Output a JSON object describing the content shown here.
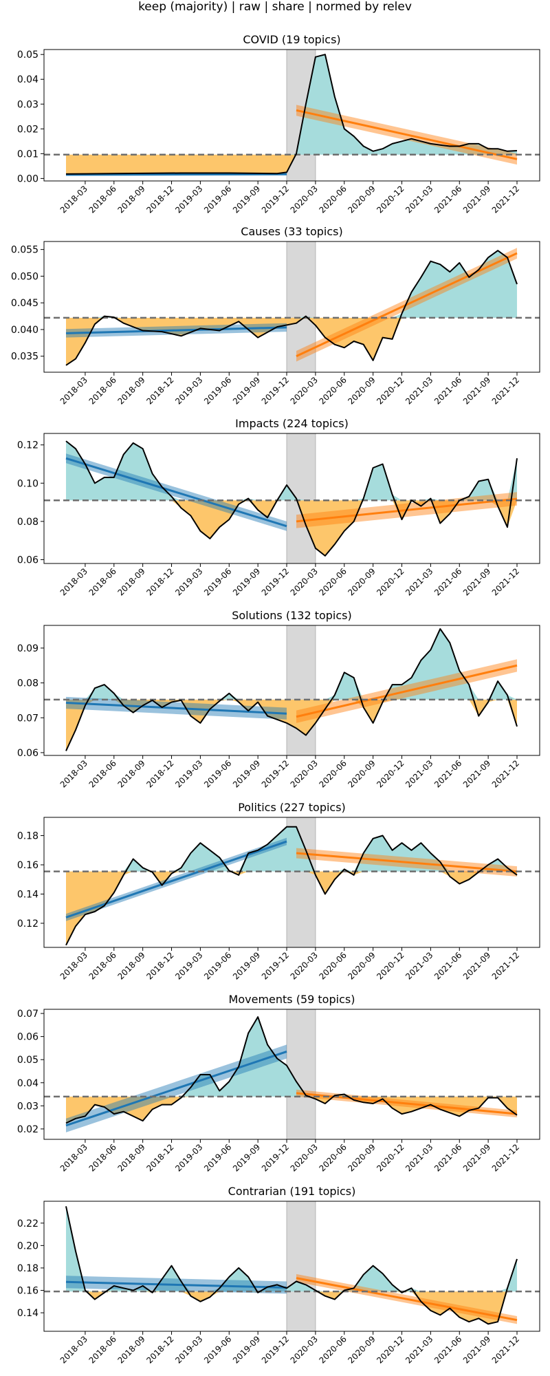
{
  "figure": {
    "title": "keep (majority) | raw | share | normed by relev"
  },
  "colors": {
    "line": "#000000",
    "above_fill": "#a6dcdc",
    "below_fill": "#fdc66b",
    "pre_trend": "#1f77b4",
    "post_trend": "#ff7f0e",
    "covid_band": "#d8d8d8",
    "mean_line": "#6e6e6e"
  },
  "x_ticks": [
    "2018-03",
    "2018-06",
    "2018-09",
    "2018-12",
    "2019-03",
    "2019-06",
    "2019-09",
    "2019-12",
    "2020-03",
    "2020-06",
    "2020-09",
    "2020-12",
    "2021-03",
    "2021-06",
    "2021-09",
    "2021-12"
  ],
  "chart_data": [
    {
      "type": "line",
      "title": "COVID (19 topics)",
      "ylim": [
        -0.001,
        0.052
      ],
      "yticks": [
        "0.00",
        "0.01",
        "0.02",
        "0.03",
        "0.04",
        "0.05"
      ],
      "ytick_values": [
        0,
        0.01,
        0.02,
        0.03,
        0.04,
        0.05
      ],
      "mean": 0.0096,
      "covid_band": [
        "2019-12",
        "2020-03"
      ],
      "pre_trend": {
        "x": [
          "2018-01",
          "2019-12"
        ],
        "y": [
          0.0015,
          0.0017
        ],
        "band": 0.0004
      },
      "post_trend": {
        "x": [
          "2020-01",
          "2021-12"
        ],
        "y": [
          0.0275,
          0.0078
        ],
        "band": 0.0022
      },
      "series": [
        {
          "x": [
            "2018-01",
            "2018-06",
            "2019-01",
            "2019-06",
            "2019-11",
            "2019-12",
            "2020-01",
            "2020-02",
            "2020-03",
            "2020-04",
            "2020-05",
            "2020-06",
            "2020-07",
            "2020-08",
            "2020-09",
            "2020-10",
            "2020-11",
            "2020-12",
            "2021-01",
            "2021-02",
            "2021-03",
            "2021-04",
            "2021-05",
            "2021-06",
            "2021-07",
            "2021-08",
            "2021-09",
            "2021-10",
            "2021-11",
            "2021-12"
          ],
          "y": [
            0.0018,
            0.002,
            0.0022,
            0.0022,
            0.002,
            0.0025,
            0.01,
            0.03,
            0.049,
            0.05,
            0.033,
            0.02,
            0.017,
            0.013,
            0.011,
            0.012,
            0.014,
            0.015,
            0.016,
            0.015,
            0.014,
            0.0135,
            0.013,
            0.013,
            0.014,
            0.014,
            0.012,
            0.012,
            0.011,
            0.0112
          ]
        }
      ]
    },
    {
      "type": "line",
      "title": "Causes (33 topics)",
      "ylim": [
        0.032,
        0.0565
      ],
      "yticks": [
        "0.035",
        "0.040",
        "0.045",
        "0.050",
        "0.055"
      ],
      "ytick_values": [
        0.035,
        0.04,
        0.045,
        0.05,
        0.055
      ],
      "mean": 0.0422,
      "covid_band": [
        "2019-12",
        "2020-03"
      ],
      "pre_trend": {
        "x": [
          "2018-01",
          "2019-12"
        ],
        "y": [
          0.0393,
          0.0404
        ],
        "band": 0.0008
      },
      "post_trend": {
        "x": [
          "2020-01",
          "2021-12"
        ],
        "y": [
          0.035,
          0.0543
        ],
        "band": 0.001
      },
      "series": [
        {
          "x": [
            "2018-01",
            "2018-02",
            "2018-03",
            "2018-04",
            "2018-05",
            "2018-06",
            "2018-07",
            "2018-09",
            "2018-11",
            "2019-01",
            "2019-03",
            "2019-05",
            "2019-07",
            "2019-09",
            "2019-11",
            "2020-01",
            "2020-02",
            "2020-03",
            "2020-04",
            "2020-05",
            "2020-06",
            "2020-07",
            "2020-08",
            "2020-09",
            "2020-10",
            "2020-11",
            "2020-12",
            "2021-01",
            "2021-02",
            "2021-03",
            "2021-04",
            "2021-05",
            "2021-06",
            "2021-07",
            "2021-08",
            "2021-09",
            "2021-10",
            "2021-11",
            "2021-12"
          ],
          "y": [
            0.0333,
            0.0345,
            0.0375,
            0.041,
            0.0425,
            0.0423,
            0.0412,
            0.0398,
            0.0396,
            0.0388,
            0.0402,
            0.0398,
            0.0415,
            0.0385,
            0.0405,
            0.0412,
            0.0425,
            0.0408,
            0.0385,
            0.0372,
            0.0366,
            0.0378,
            0.0372,
            0.0342,
            0.0385,
            0.0382,
            0.043,
            0.047,
            0.0498,
            0.0528,
            0.0522,
            0.0508,
            0.0525,
            0.0498,
            0.0512,
            0.0535,
            0.0548,
            0.0535,
            0.0485
          ]
        }
      ]
    },
    {
      "type": "line",
      "title": "Impacts (224 topics)",
      "ylim": [
        0.058,
        0.126
      ],
      "yticks": [
        "0.06",
        "0.08",
        "0.10",
        "0.12"
      ],
      "ytick_values": [
        0.06,
        0.08,
        0.1,
        0.12
      ],
      "mean": 0.091,
      "covid_band": [
        "2019-12",
        "2020-03"
      ],
      "pre_trend": {
        "x": [
          "2018-01",
          "2019-12"
        ],
        "y": [
          0.113,
          0.0775
        ],
        "band": 0.0025
      },
      "post_trend": {
        "x": [
          "2020-01",
          "2021-12"
        ],
        "y": [
          0.08,
          0.0918
        ],
        "band": 0.0035
      },
      "series": [
        {
          "x": [
            "2018-01",
            "2018-02",
            "2018-03",
            "2018-04",
            "2018-05",
            "2018-06",
            "2018-07",
            "2018-08",
            "2018-09",
            "2018-10",
            "2018-11",
            "2018-12",
            "2019-01",
            "2019-02",
            "2019-03",
            "2019-04",
            "2019-05",
            "2019-06",
            "2019-07",
            "2019-08",
            "2019-09",
            "2019-10",
            "2019-11",
            "2019-12",
            "2020-01",
            "2020-02",
            "2020-03",
            "2020-04",
            "2020-05",
            "2020-06",
            "2020-07",
            "2020-08",
            "2020-09",
            "2020-10",
            "2020-11",
            "2020-12",
            "2021-01",
            "2021-02",
            "2021-03",
            "2021-04",
            "2021-05",
            "2021-06",
            "2021-07",
            "2021-08",
            "2021-09",
            "2021-10",
            "2021-11",
            "2021-12"
          ],
          "y": [
            0.122,
            0.118,
            0.11,
            0.1,
            0.103,
            0.103,
            0.115,
            0.121,
            0.118,
            0.105,
            0.098,
            0.093,
            0.087,
            0.083,
            0.075,
            0.071,
            0.077,
            0.081,
            0.089,
            0.092,
            0.086,
            0.082,
            0.091,
            0.099,
            0.092,
            0.078,
            0.066,
            0.062,
            0.068,
            0.075,
            0.08,
            0.092,
            0.108,
            0.11,
            0.094,
            0.081,
            0.091,
            0.088,
            0.092,
            0.079,
            0.084,
            0.091,
            0.093,
            0.101,
            0.102,
            0.088,
            0.077,
            0.113
          ]
        }
      ]
    },
    {
      "type": "line",
      "title": "Solutions (132 topics)",
      "ylim": [
        0.0592,
        0.0965
      ],
      "yticks": [
        "0.06",
        "0.07",
        "0.08",
        "0.09"
      ],
      "ytick_values": [
        0.06,
        0.07,
        0.08,
        0.09
      ],
      "mean": 0.0752,
      "covid_band": [
        "2019-12",
        "2020-03"
      ],
      "pre_trend": {
        "x": [
          "2018-01",
          "2019-12"
        ],
        "y": [
          0.0743,
          0.0712
        ],
        "band": 0.0017
      },
      "post_trend": {
        "x": [
          "2020-01",
          "2021-12"
        ],
        "y": [
          0.0703,
          0.085
        ],
        "band": 0.0018
      },
      "series": [
        {
          "x": [
            "2018-01",
            "2018-02",
            "2018-03",
            "2018-04",
            "2018-05",
            "2018-06",
            "2018-07",
            "2018-08",
            "2018-09",
            "2018-10",
            "2018-11",
            "2018-12",
            "2019-01",
            "2019-02",
            "2019-03",
            "2019-04",
            "2019-05",
            "2019-06",
            "2019-07",
            "2019-08",
            "2019-09",
            "2019-10",
            "2019-11",
            "2019-12",
            "2020-01",
            "2020-02",
            "2020-03",
            "2020-04",
            "2020-05",
            "2020-06",
            "2020-07",
            "2020-08",
            "2020-09",
            "2020-10",
            "2020-11",
            "2020-12",
            "2021-01",
            "2021-02",
            "2021-03",
            "2021-04",
            "2021-05",
            "2021-06",
            "2021-07",
            "2021-08",
            "2021-09",
            "2021-10",
            "2021-11",
            "2021-12"
          ],
          "y": [
            0.0605,
            0.0665,
            0.0735,
            0.0785,
            0.0795,
            0.077,
            0.0735,
            0.0715,
            0.0735,
            0.075,
            0.073,
            0.0745,
            0.075,
            0.0705,
            0.0685,
            0.0725,
            0.0748,
            0.077,
            0.0745,
            0.072,
            0.0745,
            0.0705,
            0.0695,
            0.0685,
            0.067,
            0.065,
            0.0685,
            0.0725,
            0.0765,
            0.083,
            0.0815,
            0.073,
            0.0685,
            0.0745,
            0.0795,
            0.0795,
            0.0815,
            0.0865,
            0.0895,
            0.0955,
            0.0915,
            0.0835,
            0.0795,
            0.0705,
            0.0745,
            0.0805,
            0.0765,
            0.0675
          ]
        }
      ]
    },
    {
      "type": "line",
      "title": "Politics (227 topics)",
      "ylim": [
        0.1035,
        0.1925
      ],
      "yticks": [
        "0.12",
        "0.14",
        "0.16",
        "0.18"
      ],
      "ytick_values": [
        0.12,
        0.14,
        0.16,
        0.18
      ],
      "mean": 0.1555,
      "covid_band": [
        "2019-12",
        "2020-03"
      ],
      "pre_trend": {
        "x": [
          "2018-01",
          "2019-12"
        ],
        "y": [
          0.124,
          0.176
        ],
        "band": 0.0025
      },
      "post_trend": {
        "x": [
          "2020-01",
          "2021-12"
        ],
        "y": [
          0.168,
          0.1555
        ],
        "band": 0.0035
      },
      "series": [
        {
          "x": [
            "2018-01",
            "2018-02",
            "2018-03",
            "2018-04",
            "2018-05",
            "2018-06",
            "2018-07",
            "2018-08",
            "2018-09",
            "2018-10",
            "2018-11",
            "2018-12",
            "2019-01",
            "2019-02",
            "2019-03",
            "2019-04",
            "2019-05",
            "2019-06",
            "2019-07",
            "2019-08",
            "2019-09",
            "2019-10",
            "2019-11",
            "2019-12",
            "2020-01",
            "2020-02",
            "2020-03",
            "2020-04",
            "2020-05",
            "2020-06",
            "2020-07",
            "2020-08",
            "2020-09",
            "2020-10",
            "2020-11",
            "2020-12",
            "2021-01",
            "2021-02",
            "2021-03",
            "2021-04",
            "2021-05",
            "2021-06",
            "2021-07",
            "2021-08",
            "2021-09",
            "2021-10",
            "2021-11",
            "2021-12"
          ],
          "y": [
            0.105,
            0.118,
            0.126,
            0.128,
            0.132,
            0.141,
            0.153,
            0.164,
            0.158,
            0.155,
            0.146,
            0.154,
            0.158,
            0.168,
            0.175,
            0.17,
            0.165,
            0.156,
            0.153,
            0.168,
            0.17,
            0.174,
            0.18,
            0.186,
            0.186,
            0.17,
            0.153,
            0.14,
            0.15,
            0.157,
            0.153,
            0.168,
            0.178,
            0.18,
            0.17,
            0.175,
            0.17,
            0.175,
            0.168,
            0.162,
            0.152,
            0.147,
            0.15,
            0.155,
            0.16,
            0.164,
            0.158,
            0.153
          ]
        }
      ]
    },
    {
      "type": "line",
      "title": "Movements (59 topics)",
      "ylim": [
        0.0155,
        0.0718
      ],
      "yticks": [
        "0.02",
        "0.03",
        "0.04",
        "0.05",
        "0.06",
        "0.07"
      ],
      "ytick_values": [
        0.02,
        0.03,
        0.04,
        0.05,
        0.06,
        0.07
      ],
      "mean": 0.034,
      "covid_band": [
        "2019-12",
        "2020-03"
      ],
      "pre_trend": {
        "x": [
          "2018-01",
          "2019-12"
        ],
        "y": [
          0.0215,
          0.0535
        ],
        "band": 0.003
      },
      "post_trend": {
        "x": [
          "2020-01",
          "2021-12"
        ],
        "y": [
          0.0355,
          0.0265
        ],
        "band": 0.0015
      },
      "series": [
        {
          "x": [
            "2018-01",
            "2018-02",
            "2018-03",
            "2018-04",
            "2018-05",
            "2018-06",
            "2018-07",
            "2018-08",
            "2018-09",
            "2018-10",
            "2018-11",
            "2018-12",
            "2019-01",
            "2019-02",
            "2019-03",
            "2019-04",
            "2019-05",
            "2019-06",
            "2019-07",
            "2019-08",
            "2019-09",
            "2019-10",
            "2019-11",
            "2019-12",
            "2020-01",
            "2020-02",
            "2020-03",
            "2020-04",
            "2020-05",
            "2020-06",
            "2020-07",
            "2020-08",
            "2020-09",
            "2020-10",
            "2020-11",
            "2020-12",
            "2021-01",
            "2021-02",
            "2021-03",
            "2021-04",
            "2021-05",
            "2021-06",
            "2021-07",
            "2021-08",
            "2021-09",
            "2021-10",
            "2021-11",
            "2021-12"
          ],
          "y": [
            0.0225,
            0.0245,
            0.0255,
            0.0305,
            0.0295,
            0.0265,
            0.0275,
            0.0255,
            0.0235,
            0.0285,
            0.0305,
            0.0305,
            0.0335,
            0.038,
            0.0435,
            0.0435,
            0.0365,
            0.0405,
            0.047,
            0.0615,
            0.0685,
            0.0565,
            0.0505,
            0.0475,
            0.0405,
            0.0345,
            0.033,
            0.031,
            0.0345,
            0.035,
            0.0325,
            0.0315,
            0.031,
            0.033,
            0.029,
            0.0265,
            0.0275,
            0.029,
            0.0305,
            0.0285,
            0.027,
            0.0255,
            0.028,
            0.029,
            0.0335,
            0.0335,
            0.029,
            0.026
          ]
        }
      ]
    },
    {
      "type": "line",
      "title": "Contrarian (191 topics)",
      "ylim": [
        0.1235,
        0.2395
      ],
      "yticks": [
        "0.14",
        "0.16",
        "0.18",
        "0.20",
        "0.22"
      ],
      "ytick_values": [
        0.14,
        0.16,
        0.18,
        0.2,
        0.22
      ],
      "mean": 0.159,
      "covid_band": [
        "2019-12",
        "2020-03"
      ],
      "pre_trend": {
        "x": [
          "2018-01",
          "2019-12"
        ],
        "y": [
          0.1675,
          0.1625
        ],
        "band": 0.0055
      },
      "post_trend": {
        "x": [
          "2020-01",
          "2021-12"
        ],
        "y": [
          0.171,
          0.1335
        ],
        "band": 0.0035
      },
      "series": [
        {
          "x": [
            "2018-01",
            "2018-02",
            "2018-03",
            "2018-04",
            "2018-05",
            "2018-06",
            "2018-07",
            "2018-08",
            "2018-09",
            "2018-10",
            "2018-11",
            "2018-12",
            "2019-01",
            "2019-02",
            "2019-03",
            "2019-04",
            "2019-05",
            "2019-06",
            "2019-07",
            "2019-08",
            "2019-09",
            "2019-10",
            "2019-11",
            "2019-12",
            "2020-01",
            "2020-02",
            "2020-03",
            "2020-04",
            "2020-05",
            "2020-06",
            "2020-07",
            "2020-08",
            "2020-09",
            "2020-10",
            "2020-11",
            "2020-12",
            "2021-01",
            "2021-02",
            "2021-03",
            "2021-04",
            "2021-05",
            "2021-06",
            "2021-07",
            "2021-08",
            "2021-09",
            "2021-10",
            "2021-11",
            "2021-12"
          ],
          "y": [
            0.235,
            0.195,
            0.16,
            0.152,
            0.158,
            0.164,
            0.162,
            0.16,
            0.164,
            0.158,
            0.17,
            0.182,
            0.168,
            0.155,
            0.15,
            0.154,
            0.162,
            0.172,
            0.18,
            0.172,
            0.158,
            0.163,
            0.165,
            0.162,
            0.168,
            0.165,
            0.16,
            0.155,
            0.152,
            0.16,
            0.162,
            0.174,
            0.182,
            0.175,
            0.165,
            0.158,
            0.162,
            0.15,
            0.142,
            0.138,
            0.144,
            0.136,
            0.132,
            0.135,
            0.13,
            0.132,
            0.162,
            0.188
          ]
        }
      ]
    }
  ]
}
